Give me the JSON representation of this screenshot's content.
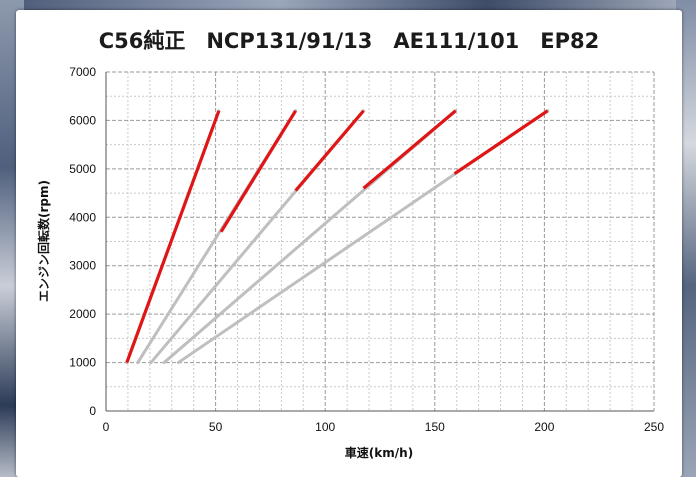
{
  "chart_data": {
    "type": "line",
    "title": "C56純正　NCP131/91/13　AE111/101　EP82",
    "xlabel": "車速(km/h)",
    "ylabel": "エンジン回転数(rpm)",
    "xlim": [
      0,
      250
    ],
    "ylim": [
      0,
      7000
    ],
    "x_ticks": [
      "0",
      "50",
      "100",
      "150",
      "200",
      "250"
    ],
    "y_ticks": [
      "0",
      "1000",
      "2000",
      "3000",
      "4000",
      "5000",
      "6000",
      "7000"
    ],
    "grid": "on (dashed, major every 50 km/h and 1000 rpm, minor every 10 km/h and 500 rpm)",
    "gear_lines": [
      {
        "gear": 1,
        "x_start": 9.5,
        "y_start": 1000,
        "x_end": 51.5,
        "y_end": 6200,
        "shift_from": 9.5,
        "shift_rpm_from": 1000
      },
      {
        "gear": 2,
        "x_start": 14.5,
        "y_start": 1000,
        "x_end": 86.5,
        "y_end": 6200,
        "shift_from": 52.5,
        "shift_rpm_from": 3700
      },
      {
        "gear": 3,
        "x_start": 20.5,
        "y_start": 1000,
        "x_end": 117.5,
        "y_end": 6200,
        "shift_from": 86.5,
        "shift_rpm_from": 4550
      },
      {
        "gear": 4,
        "x_start": 26.5,
        "y_start": 1000,
        "x_end": 159.5,
        "y_end": 6200,
        "shift_from": 117.5,
        "shift_rpm_from": 4600
      },
      {
        "gear": 5,
        "x_start": 33,
        "y_start": 1000,
        "x_end": 201.5,
        "y_end": 6200,
        "shift_from": 159,
        "shift_rpm_from": 4900
      }
    ],
    "colors": {
      "full_line": "#bfbfbf",
      "used_range": "#e01515"
    }
  }
}
